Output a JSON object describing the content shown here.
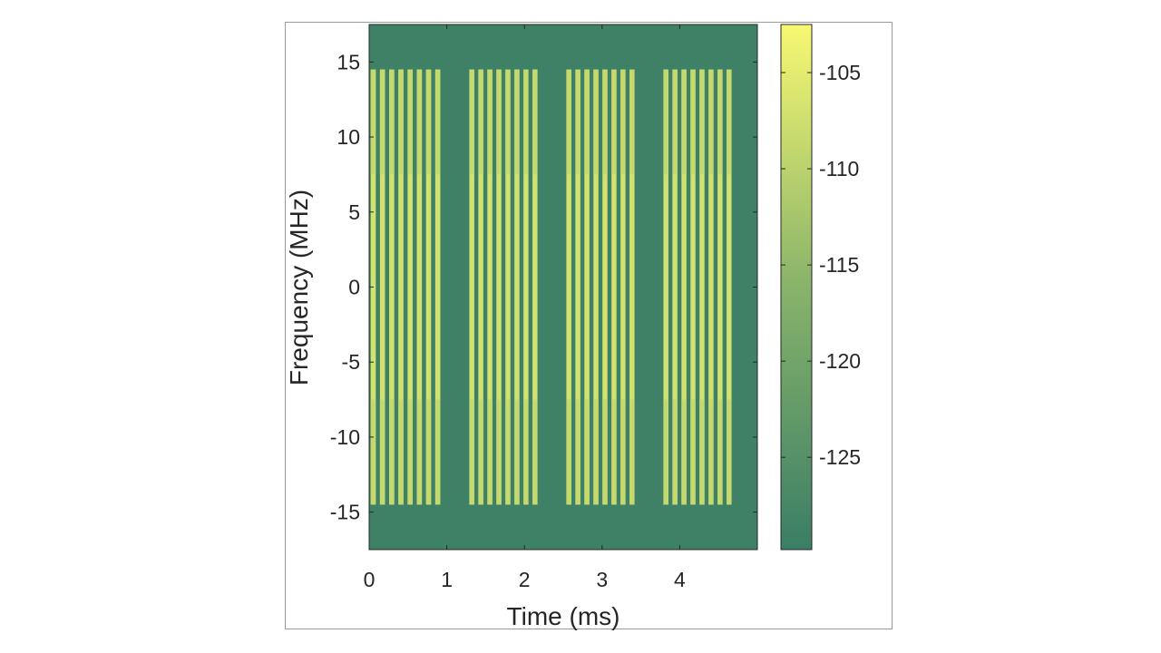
{
  "chart_data": {
    "type": "heatmap",
    "title": "",
    "xlabel": "Time (ms)",
    "ylabel": "Frequency (MHz)",
    "xlim": [
      0,
      5
    ],
    "ylim": [
      -17.5,
      17.5
    ],
    "x_ticks": [
      0,
      1,
      2,
      3,
      4
    ],
    "y_ticks": [
      15,
      10,
      5,
      0,
      -5,
      -10,
      -15
    ],
    "colorbar": {
      "ticks": [
        -105,
        -110,
        -115,
        -120,
        -125
      ],
      "range": [
        -129.8,
        -102.5
      ],
      "colors": [
        "#3a7e66",
        "#88b36a",
        "#f8f872"
      ]
    },
    "background_level_db": -129,
    "signal": {
      "freq_range_mhz": [
        -14.5,
        14.5
      ],
      "level_db": -107,
      "edge_band_level_db": -109,
      "edge_band_upper_mhz": [
        7.5,
        14.5
      ],
      "edge_band_lower_mhz": [
        -14.5,
        -7.5
      ],
      "bursts": [
        {
          "start_ms": 0.02,
          "end_ms": 0.97,
          "pulses": 8
        },
        {
          "start_ms": 1.29,
          "end_ms": 2.22,
          "pulses": 8
        },
        {
          "start_ms": 2.54,
          "end_ms": 3.47,
          "pulses": 8
        },
        {
          "start_ms": 3.79,
          "end_ms": 4.72,
          "pulses": 8
        }
      ],
      "pulse_duty": 0.55
    }
  }
}
